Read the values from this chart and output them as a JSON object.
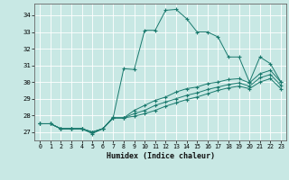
{
  "xlabel": "Humidex (Indice chaleur)",
  "xlim": [
    -0.5,
    23.5
  ],
  "ylim": [
    26.5,
    34.7
  ],
  "yticks": [
    27,
    28,
    29,
    30,
    31,
    32,
    33,
    34
  ],
  "xticks": [
    0,
    1,
    2,
    3,
    4,
    5,
    6,
    7,
    8,
    9,
    10,
    11,
    12,
    13,
    14,
    15,
    16,
    17,
    18,
    19,
    20,
    21,
    22,
    23
  ],
  "background_color": "#c8e8e4",
  "grid_color": "#ffffff",
  "line_color": "#1a7a6e",
  "main_line": {
    "x": [
      0,
      1,
      2,
      3,
      4,
      5,
      6,
      7,
      8,
      9,
      10,
      11,
      12,
      13,
      14,
      15,
      16,
      17,
      18,
      19,
      20,
      21,
      22,
      23
    ],
    "y": [
      27.5,
      27.5,
      27.2,
      27.2,
      27.2,
      26.9,
      27.2,
      27.9,
      30.8,
      30.75,
      33.1,
      33.1,
      34.3,
      34.35,
      33.8,
      33.0,
      33.0,
      32.7,
      31.5,
      31.5,
      30.0,
      31.5,
      31.1,
      30.0
    ]
  },
  "grad_lines": [
    [
      27.5,
      27.5,
      27.2,
      27.2,
      27.2,
      27.0,
      27.2,
      27.85,
      27.85,
      28.3,
      28.6,
      28.9,
      29.1,
      29.4,
      29.6,
      29.7,
      29.9,
      30.0,
      30.15,
      30.2,
      29.95,
      30.5,
      30.7,
      30.0
    ],
    [
      27.5,
      27.5,
      27.2,
      27.2,
      27.2,
      27.0,
      27.2,
      27.85,
      27.85,
      28.1,
      28.3,
      28.6,
      28.8,
      29.0,
      29.2,
      29.35,
      29.55,
      29.7,
      29.85,
      29.95,
      29.75,
      30.25,
      30.45,
      29.8
    ],
    [
      27.5,
      27.5,
      27.2,
      27.2,
      27.2,
      27.0,
      27.2,
      27.85,
      27.85,
      27.95,
      28.1,
      28.3,
      28.55,
      28.75,
      28.95,
      29.1,
      29.3,
      29.5,
      29.65,
      29.75,
      29.6,
      30.0,
      30.2,
      29.6
    ]
  ]
}
